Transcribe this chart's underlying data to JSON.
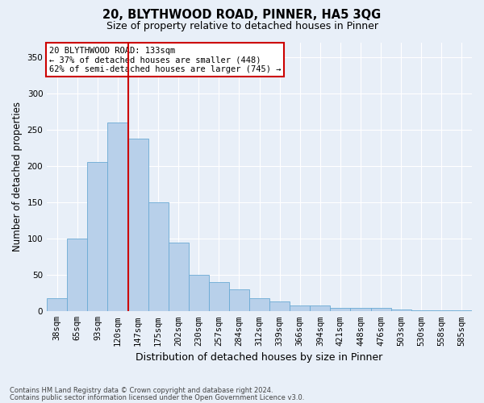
{
  "title": "20, BLYTHWOOD ROAD, PINNER, HA5 3QG",
  "subtitle": "Size of property relative to detached houses in Pinner",
  "xlabel": "Distribution of detached houses by size in Pinner",
  "ylabel": "Number of detached properties",
  "footnote1": "Contains HM Land Registry data © Crown copyright and database right 2024.",
  "footnote2": "Contains public sector information licensed under the Open Government Licence v3.0.",
  "bar_color": "#b8d0ea",
  "bar_edge_color": "#6aaad4",
  "background_color": "#e8eff8",
  "grid_color": "#ffffff",
  "vline_color": "#cc0000",
  "vline_x": 3.5,
  "annotation_text": "20 BLYTHWOOD ROAD: 133sqm\n← 37% of detached houses are smaller (448)\n62% of semi-detached houses are larger (745) →",
  "annotation_box_color": "#ffffff",
  "annotation_box_edge": "#cc0000",
  "categories": [
    "38sqm",
    "65sqm",
    "93sqm",
    "120sqm",
    "147sqm",
    "175sqm",
    "202sqm",
    "230sqm",
    "257sqm",
    "284sqm",
    "312sqm",
    "339sqm",
    "366sqm",
    "394sqm",
    "421sqm",
    "448sqm",
    "476sqm",
    "503sqm",
    "530sqm",
    "558sqm",
    "585sqm"
  ],
  "values": [
    18,
    100,
    205,
    260,
    238,
    150,
    95,
    50,
    40,
    30,
    18,
    14,
    8,
    8,
    5,
    5,
    5,
    3,
    2,
    1,
    2
  ],
  "ylim": [
    0,
    370
  ],
  "yticks": [
    0,
    50,
    100,
    150,
    200,
    250,
    300,
    350
  ],
  "title_fontsize": 10.5,
  "subtitle_fontsize": 9,
  "ylabel_fontsize": 8.5,
  "xlabel_fontsize": 9,
  "tick_fontsize": 7.5,
  "annotation_fontsize": 7.5,
  "footnote_fontsize": 6
}
